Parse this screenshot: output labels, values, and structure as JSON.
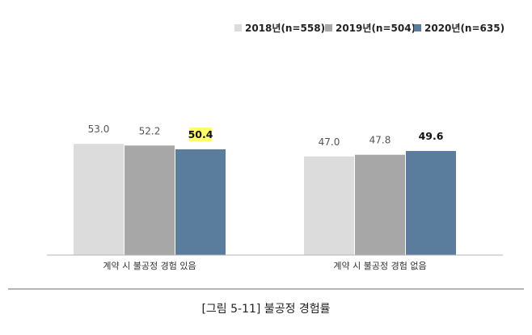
{
  "chart_data": {
    "type": "bar",
    "categories": [
      "계약 시 불공정 경험 있음",
      "계약 시 불공정 경험 없음"
    ],
    "series": [
      {
        "name": "2018년(n=558)",
        "values": [
          53.0,
          47.0
        ],
        "color": "#dcdcdc"
      },
      {
        "name": "2019년(n=504)",
        "values": [
          52.2,
          47.8
        ],
        "color": "#a7a7a7"
      },
      {
        "name": "2020년(n=635)",
        "values": [
          50.4,
          49.6
        ],
        "color": "#5a7d9e"
      }
    ],
    "value_labels": [
      [
        "53.0",
        "47.0"
      ],
      [
        "52.2",
        "47.8"
      ],
      [
        "50.4",
        "49.6"
      ]
    ],
    "emphasized_series": 2,
    "highlight": {
      "category": 0,
      "series": 2,
      "color": "#ffff66"
    },
    "ylim": [
      0,
      100
    ],
    "legend_position": "top-right",
    "grid": false
  },
  "caption": "[그림 5-11] 불공정 경험률"
}
